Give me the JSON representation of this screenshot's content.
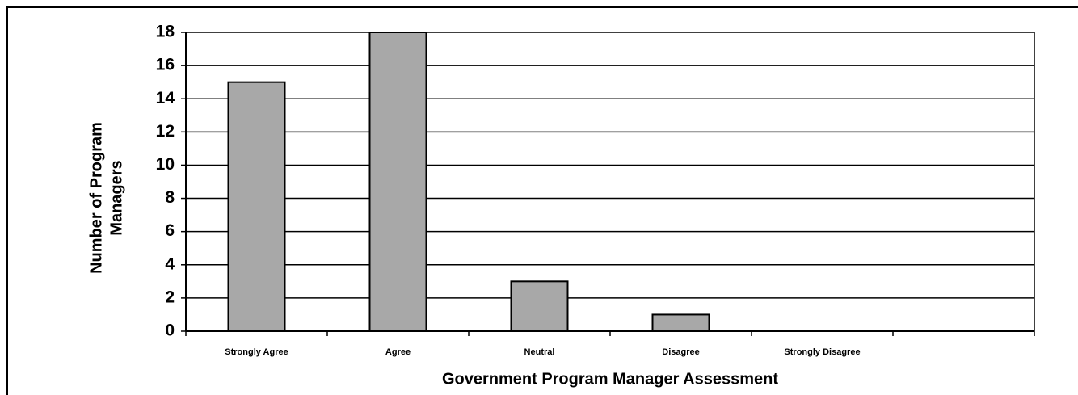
{
  "chart_data": {
    "type": "bar",
    "categories": [
      "Strongly Agree",
      "Agree",
      "Neutral",
      "Disagree",
      "Strongly Disagree",
      null
    ],
    "values": [
      15,
      18,
      3,
      1,
      0,
      null
    ],
    "color": "#a8a8a8",
    "x_label": "Government Program Manager Assessment",
    "y_label": [
      "Number of Program",
      "Managers"
    ],
    "ylim": [
      0,
      18
    ],
    "yticks": [
      0,
      2,
      4,
      6,
      8,
      10,
      12,
      14,
      16,
      18
    ],
    "grid": true
  }
}
